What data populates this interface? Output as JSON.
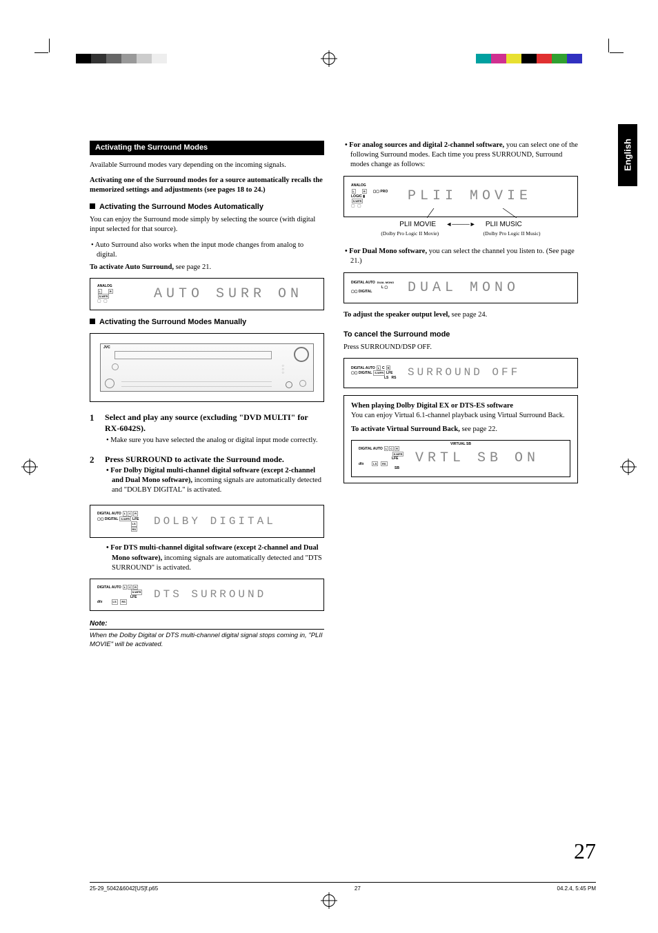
{
  "page": {
    "language_tab": "English",
    "number": "27",
    "footer_left": "25-29_5042&6042[US]f.p65",
    "footer_center": "27",
    "footer_right": "04.2.4, 5:45 PM"
  },
  "registration": {
    "left_colors": [
      "#000000",
      "#333333",
      "#666666",
      "#999999",
      "#cccccc",
      "#eeeeee"
    ],
    "right_colors": [
      "#00a0a0",
      "#d03090",
      "#e8e030",
      "#000000",
      "#e03030",
      "#30a030",
      "#3030c0"
    ]
  },
  "left_col": {
    "section_title": "Activating the Surround Modes",
    "intro": "Available Surround modes vary depending on the incoming signals.",
    "auto_recall": "Activating one of the Surround modes for a source automatically recalls the memorized settings and adjustments (see pages 18 to 24.)",
    "sub_auto_title": "Activating the Surround Modes Automatically",
    "sub_auto_p1": "You can enjoy the Surround mode simply by selecting the source (with digital input selected for that source).",
    "sub_auto_b1": "• Auto Surround also works when the input mode changes from analog to digital.",
    "sub_auto_activate": "To activate Auto Surround,",
    "sub_auto_activate_rest": " see page 21.",
    "display_auto": {
      "ind_top": "ANALOG",
      "seg": "AUTO SURR ON"
    },
    "sub_manual_title": "Activating the Surround Modes Manually",
    "step1_title": "Select and play any source (excluding \"DVD MULTI\" for RX-6042S).",
    "step1_sub": "• Make sure you have selected the analog or digital input mode correctly.",
    "step2_title": "Press SURROUND to activate the Surround mode.",
    "step2_b1_bold": "• For Dolby Digital multi-channel digital software (except 2-channel and Dual Mono software),",
    "step2_b1_rest": " incoming signals are automatically detected and \"DOLBY DIGITAL\" is activated.",
    "display_dolby_seg": "DOLBY DIGITAL",
    "step2_b2_bold": "• For DTS multi-channel digital software (except 2-channel and Dual Mono software),",
    "step2_b2_rest": " incoming signals are automatically detected and \"DTS SURROUND\" is activated.",
    "display_dts_seg": "DTS SURROUND",
    "note_label": "Note:",
    "note_text": "When the Dolby Digital or DTS multi-channel digital signal stops coming in, \"PLII MOVIE\" will be activated."
  },
  "right_col": {
    "b1_bold": "• For analog sources and digital 2-channel software,",
    "b1_rest": " you can select one of the following Surround modes. Each time you press SURROUND, Surround modes change as follows:",
    "display_plii_seg": "PLII MOVIE",
    "mode_left": "PLII MOVIE",
    "mode_left_sub": "(Dolby Pro Logic II  Movie)",
    "mode_right": "PLII MUSIC",
    "mode_right_sub": "(Dolby Pro Logic II  Music)",
    "b2_bold": "• For Dual Mono software,",
    "b2_rest": " you can select the channel you listen to. (See page 21.)",
    "display_dual_seg": "DUAL MONO",
    "adjust_bold": "To adjust the speaker output level,",
    "adjust_rest": " see page 24.",
    "cancel_title": "To cancel the Surround mode",
    "cancel_text": "Press SURROUND/DSP OFF.",
    "display_off_seg": "SURROUND OFF",
    "vsb_box_title": "When playing Dolby Digital EX or DTS-ES software",
    "vsb_box_p": "You can enjoy Virtual 6.1-channel playback using Virtual Surround Back.",
    "vsb_box_act_bold": "To activate Virtual Surround Back,",
    "vsb_box_act_rest": " see page 22.",
    "display_vsb_top": "VIRTUAL SB",
    "display_vsb_seg": "VRTL SB ON"
  },
  "indicators": {
    "digital_auto": "DIGITAL AUTO",
    "dd_digital": "DIGITAL",
    "dts": "dts",
    "analog": "ANALOG",
    "dualmono": "DUAL MONO",
    "prologic": "PRO LOGIC"
  }
}
